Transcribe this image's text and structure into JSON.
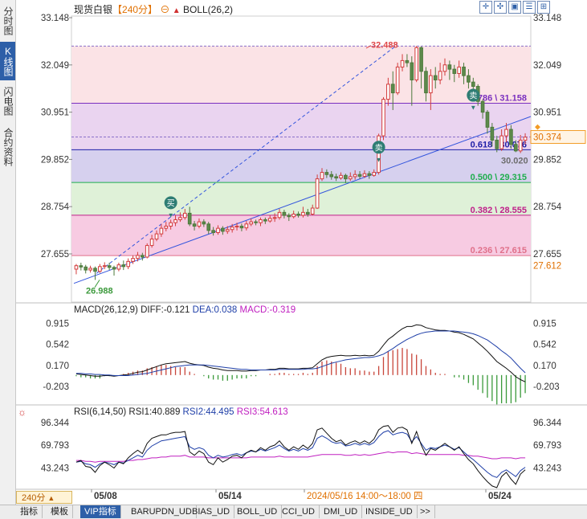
{
  "header": {
    "symbol": "现货白银",
    "period": "【240分】",
    "indicator": "BOLL(26,2)"
  },
  "left_tabs": [
    "分时图",
    "K线图",
    "闪电图",
    "合约资料"
  ],
  "active_left_tab": 1,
  "toolbar_icons": [
    "crosshair-icon",
    "move-icon",
    "overlay-icon",
    "list-icon",
    "expand-icon"
  ],
  "period_button": "240分",
  "bottom_tabs": [
    "指标",
    "模板",
    "VIP指标",
    "BARUPDN_UD",
    "BIAS_UD",
    "BOLL_UD",
    "CCI_UD",
    "DMI_UD",
    "INSIDE_UD",
    ">>"
  ],
  "active_bottom_tab": 2,
  "x_axis": {
    "labels": [
      "05/08",
      "05/14",
      "2024/05/16 14:00～18:00 四",
      "05/24"
    ]
  },
  "price_axis": {
    "labels": [
      "33.148",
      "32.049",
      "30.951",
      "29.852",
      "28.754",
      "27.655"
    ],
    "current_price": "30.374",
    "right_low_label": "27.612"
  },
  "chart_data": {
    "type": "candlestick",
    "price_range": [
      27.05,
      33.148
    ],
    "high_label": "32.488",
    "low_label": "26.988",
    "last_low_label": "30.020",
    "fibonacci": [
      {
        "ratio": "0.786",
        "value": "31.158",
        "label": "0.786 \\ 31.158",
        "color": "#7a2fbf"
      },
      {
        "ratio": "0.618",
        "value": "30.076",
        "label": "0.618 \\ 30.076",
        "color": "#1f1fa8"
      },
      {
        "ratio": "0.500",
        "value": "29.315",
        "label": "0.500 \\ 29.315",
        "color": "#1fae4e"
      },
      {
        "ratio": "0.382",
        "value": "28.555",
        "label": "0.382 \\ 28.555",
        "color": "#c0208a"
      },
      {
        "ratio": "0.236",
        "value": "27.615",
        "label": "0.236 \\ 27.615",
        "color": "#e0708a"
      }
    ],
    "signals": [
      {
        "text": "买",
        "price": 28.62,
        "index": 20,
        "color": "#2e7d74"
      },
      {
        "text": "卖",
        "price": 29.91,
        "index": 64,
        "color": "#2e7d74"
      },
      {
        "text": "卖",
        "price": 31.12,
        "index": 84,
        "color": "#2e7d74"
      }
    ],
    "candles": [
      [
        27.3,
        27.38,
        27.18,
        27.42
      ],
      [
        27.38,
        27.35,
        27.27,
        27.45
      ],
      [
        27.35,
        27.28,
        27.2,
        27.4
      ],
      [
        27.28,
        27.32,
        27.22,
        27.38
      ],
      [
        27.32,
        27.25,
        27.05,
        27.36
      ],
      [
        27.25,
        27.36,
        27.21,
        27.42
      ],
      [
        27.36,
        27.38,
        27.3,
        27.46
      ],
      [
        27.38,
        27.34,
        27.28,
        27.45
      ],
      [
        27.34,
        27.3,
        27.15,
        27.38
      ],
      [
        27.3,
        27.4,
        27.25,
        27.45
      ],
      [
        27.4,
        27.36,
        27.28,
        27.5
      ],
      [
        27.36,
        27.48,
        27.3,
        27.55
      ],
      [
        27.48,
        27.55,
        27.42,
        27.62
      ],
      [
        27.55,
        27.62,
        27.48,
        27.7
      ],
      [
        27.62,
        27.58,
        27.5,
        27.68
      ],
      [
        27.58,
        27.85,
        27.55,
        27.9
      ],
      [
        27.85,
        28.0,
        27.8,
        28.1
      ],
      [
        28.0,
        28.12,
        27.95,
        28.2
      ],
      [
        28.12,
        28.25,
        28.05,
        28.35
      ],
      [
        28.25,
        28.3,
        28.18,
        28.4
      ],
      [
        28.3,
        28.38,
        28.22,
        28.45
      ],
      [
        28.38,
        28.45,
        28.3,
        28.55
      ],
      [
        28.45,
        28.5,
        28.4,
        28.62
      ],
      [
        28.5,
        28.6,
        28.45,
        28.7
      ],
      [
        28.6,
        28.35,
        28.3,
        28.75
      ],
      [
        28.35,
        28.3,
        28.2,
        28.42
      ],
      [
        28.3,
        28.4,
        28.25,
        28.48
      ],
      [
        28.4,
        28.35,
        28.28,
        28.46
      ],
      [
        28.35,
        28.2,
        28.12,
        28.4
      ],
      [
        28.2,
        28.15,
        28.08,
        28.28
      ],
      [
        28.15,
        28.25,
        28.1,
        28.32
      ],
      [
        28.25,
        28.18,
        28.1,
        28.3
      ],
      [
        28.18,
        28.22,
        28.12,
        28.3
      ],
      [
        28.22,
        28.28,
        28.15,
        28.35
      ],
      [
        28.28,
        28.3,
        28.2,
        28.38
      ],
      [
        28.3,
        28.26,
        28.18,
        28.36
      ],
      [
        28.26,
        28.35,
        28.2,
        28.42
      ],
      [
        28.35,
        28.4,
        28.3,
        28.48
      ],
      [
        28.4,
        28.38,
        28.32,
        28.45
      ],
      [
        28.38,
        28.45,
        28.3,
        28.5
      ],
      [
        28.45,
        28.42,
        28.35,
        28.5
      ],
      [
        28.42,
        28.48,
        28.38,
        28.55
      ],
      [
        28.48,
        28.5,
        28.4,
        28.6
      ],
      [
        28.5,
        28.62,
        28.45,
        28.7
      ],
      [
        28.62,
        28.55,
        28.48,
        28.68
      ],
      [
        28.55,
        28.52,
        28.42,
        28.6
      ],
      [
        28.52,
        28.58,
        28.48,
        28.66
      ],
      [
        28.58,
        28.55,
        28.5,
        28.64
      ],
      [
        28.55,
        28.62,
        28.5,
        28.75
      ],
      [
        28.62,
        28.58,
        28.52,
        28.7
      ],
      [
        28.58,
        28.72,
        28.55,
        28.8
      ],
      [
        28.72,
        29.4,
        28.7,
        29.5
      ],
      [
        29.4,
        29.55,
        29.35,
        29.65
      ],
      [
        29.55,
        29.5,
        29.42,
        29.62
      ],
      [
        29.5,
        29.45,
        29.38,
        29.58
      ],
      [
        29.45,
        29.42,
        29.35,
        29.52
      ],
      [
        29.42,
        29.48,
        29.38,
        29.55
      ],
      [
        29.48,
        29.4,
        29.3,
        29.52
      ],
      [
        29.4,
        29.45,
        29.35,
        29.55
      ],
      [
        29.45,
        29.5,
        29.38,
        29.6
      ],
      [
        29.5,
        29.46,
        29.4,
        29.58
      ],
      [
        29.46,
        29.52,
        29.42,
        29.6
      ],
      [
        29.52,
        29.48,
        29.4,
        29.58
      ],
      [
        29.48,
        29.55,
        29.45,
        29.62
      ],
      [
        29.55,
        30.4,
        29.5,
        30.45
      ],
      [
        30.4,
        31.25,
        30.3,
        31.3
      ],
      [
        31.25,
        31.6,
        31.1,
        31.75
      ],
      [
        31.6,
        31.4,
        31.0,
        31.9
      ],
      [
        31.4,
        32.0,
        31.35,
        32.1
      ],
      [
        32.0,
        32.15,
        31.9,
        32.3
      ],
      [
        32.15,
        32.1,
        32.0,
        32.3
      ],
      [
        32.1,
        31.7,
        31.1,
        32.25
      ],
      [
        31.7,
        32.45,
        31.65,
        32.49
      ],
      [
        32.45,
        31.9,
        31.5,
        32.48
      ],
      [
        31.9,
        31.4,
        31.2,
        32.0
      ],
      [
        31.4,
        31.8,
        31.0,
        31.95
      ],
      [
        31.8,
        31.7,
        31.5,
        32.0
      ],
      [
        31.7,
        31.9,
        31.6,
        32.1
      ],
      [
        31.9,
        32.05,
        31.8,
        32.2
      ],
      [
        32.05,
        31.95,
        31.7,
        32.15
      ],
      [
        31.95,
        31.85,
        31.65,
        32.05
      ],
      [
        31.85,
        32.0,
        31.75,
        32.15
      ],
      [
        32.0,
        31.8,
        31.6,
        32.1
      ],
      [
        31.8,
        31.65,
        31.5,
        31.95
      ],
      [
        31.65,
        31.55,
        31.4,
        31.75
      ],
      [
        31.55,
        31.2,
        31.1,
        31.6
      ],
      [
        31.2,
        30.95,
        30.8,
        31.25
      ],
      [
        30.95,
        30.6,
        30.45,
        31.0
      ],
      [
        30.6,
        30.3,
        30.15,
        30.7
      ],
      [
        30.3,
        30.1,
        30.02,
        30.4
      ],
      [
        30.1,
        30.4,
        30.05,
        30.55
      ],
      [
        30.4,
        30.55,
        30.25,
        30.7
      ],
      [
        30.55,
        30.2,
        30.1,
        30.65
      ],
      [
        30.2,
        30.05,
        30.02,
        30.3
      ],
      [
        30.05,
        30.3,
        30.0,
        30.42
      ],
      [
        30.3,
        30.37,
        30.2,
        30.46
      ]
    ],
    "macd": {
      "title": "MACD(26,12,9)",
      "diff_label": "DIFF:-0.121",
      "dea_label": "DEA:0.038",
      "macd_label": "MACD:-0.319",
      "axis_labels": [
        "0.915",
        "0.542",
        "0.170",
        "-0.203"
      ],
      "range": [
        -0.5,
        1.05
      ],
      "diff": [
        0.02,
        0.01,
        0.0,
        -0.01,
        -0.02,
        -0.02,
        -0.01,
        -0.01,
        -0.02,
        -0.01,
        0.0,
        0.01,
        0.03,
        0.05,
        0.06,
        0.09,
        0.12,
        0.15,
        0.18,
        0.2,
        0.21,
        0.22,
        0.23,
        0.24,
        0.21,
        0.19,
        0.18,
        0.17,
        0.14,
        0.12,
        0.11,
        0.09,
        0.08,
        0.08,
        0.08,
        0.07,
        0.07,
        0.08,
        0.08,
        0.09,
        0.09,
        0.1,
        0.1,
        0.12,
        0.12,
        0.11,
        0.11,
        0.11,
        0.12,
        0.12,
        0.13,
        0.2,
        0.27,
        0.31,
        0.33,
        0.34,
        0.35,
        0.34,
        0.34,
        0.35,
        0.34,
        0.35,
        0.34,
        0.35,
        0.42,
        0.53,
        0.63,
        0.69,
        0.76,
        0.82,
        0.86,
        0.86,
        0.89,
        0.88,
        0.84,
        0.82,
        0.8,
        0.79,
        0.79,
        0.78,
        0.76,
        0.75,
        0.72,
        0.68,
        0.64,
        0.57,
        0.5,
        0.42,
        0.33,
        0.24,
        0.18,
        0.12,
        0.05,
        -0.03,
        -0.08,
        -0.12
      ],
      "dea": [
        0.03,
        0.03,
        0.02,
        0.02,
        0.01,
        0.01,
        0.0,
        0.0,
        -0.01,
        -0.01,
        -0.01,
        -0.01,
        0.0,
        0.01,
        0.02,
        0.03,
        0.05,
        0.07,
        0.09,
        0.11,
        0.13,
        0.15,
        0.16,
        0.17,
        0.18,
        0.18,
        0.18,
        0.18,
        0.17,
        0.16,
        0.15,
        0.14,
        0.13,
        0.12,
        0.11,
        0.1,
        0.1,
        0.09,
        0.09,
        0.09,
        0.09,
        0.09,
        0.09,
        0.1,
        0.1,
        0.1,
        0.1,
        0.1,
        0.1,
        0.11,
        0.11,
        0.12,
        0.15,
        0.18,
        0.21,
        0.23,
        0.25,
        0.27,
        0.28,
        0.29,
        0.3,
        0.31,
        0.31,
        0.32,
        0.34,
        0.37,
        0.42,
        0.47,
        0.53,
        0.58,
        0.63,
        0.67,
        0.71,
        0.74,
        0.76,
        0.77,
        0.78,
        0.78,
        0.78,
        0.78,
        0.78,
        0.77,
        0.76,
        0.75,
        0.73,
        0.7,
        0.66,
        0.62,
        0.56,
        0.5,
        0.43,
        0.37,
        0.3,
        0.21,
        0.12,
        0.04
      ]
    },
    "rsi": {
      "title": "RSI(6,14,50)",
      "rsi1_label": "RSI1:40.889",
      "rsi2_label": "RSI2:44.495",
      "rsi3_label": "RSI3:54.613",
      "axis_labels": [
        "96.344",
        "69.793",
        "43.243"
      ],
      "range": [
        20,
        104
      ],
      "rsi1": [
        50,
        52,
        45,
        44,
        38,
        46,
        50,
        47,
        43,
        50,
        48,
        55,
        60,
        64,
        60,
        72,
        78,
        80,
        82,
        82,
        84,
        85,
        85,
        86,
        62,
        58,
        63,
        60,
        50,
        47,
        55,
        50,
        53,
        57,
        58,
        55,
        61,
        64,
        62,
        67,
        64,
        68,
        70,
        75,
        68,
        64,
        68,
        65,
        70,
        66,
        72,
        88,
        90,
        84,
        78,
        74,
        76,
        70,
        73,
        75,
        72,
        75,
        72,
        77,
        88,
        92,
        93,
        85,
        90,
        91,
        88,
        72,
        86,
        70,
        58,
        66,
        64,
        68,
        72,
        68,
        64,
        68,
        60,
        53,
        48,
        40,
        33,
        27,
        22,
        20,
        33,
        38,
        30,
        24,
        36,
        41
      ],
      "rsi2": [
        50,
        51,
        48,
        47,
        44,
        48,
        50,
        49,
        47,
        50,
        49,
        52,
        55,
        58,
        56,
        64,
        69,
        72,
        75,
        76,
        77,
        78,
        79,
        80,
        68,
        65,
        67,
        65,
        58,
        55,
        58,
        56,
        57,
        59,
        60,
        58,
        61,
        63,
        62,
        65,
        63,
        65,
        67,
        70,
        66,
        63,
        65,
        63,
        66,
        64,
        67,
        78,
        81,
        78,
        74,
        72,
        73,
        69,
        70,
        72,
        70,
        72,
        70,
        73,
        80,
        85,
        87,
        82,
        84,
        85,
        83,
        74,
        80,
        72,
        64,
        67,
        66,
        68,
        70,
        68,
        65,
        67,
        62,
        57,
        53,
        48,
        43,
        38,
        34,
        32,
        38,
        41,
        37,
        33,
        40,
        44
      ],
      "rsi3": [
        52,
        52,
        51,
        51,
        50,
        51,
        51,
        51,
        51,
        51,
        51,
        52,
        52,
        53,
        53,
        54,
        55,
        55,
        56,
        56,
        57,
        57,
        57,
        58,
        56,
        56,
        56,
        56,
        55,
        55,
        55,
        55,
        55,
        55,
        55,
        55,
        55,
        56,
        56,
        56,
        56,
        56,
        56,
        57,
        56,
        56,
        56,
        56,
        56,
        56,
        57,
        58,
        59,
        59,
        59,
        59,
        59,
        58,
        58,
        59,
        58,
        59,
        58,
        59,
        60,
        61,
        62,
        61,
        62,
        62,
        62,
        60,
        61,
        60,
        59,
        59,
        59,
        59,
        59,
        59,
        59,
        59,
        58,
        58,
        57,
        57,
        56,
        55,
        54,
        54,
        55,
        55,
        55,
        54,
        55,
        55
      ]
    }
  }
}
